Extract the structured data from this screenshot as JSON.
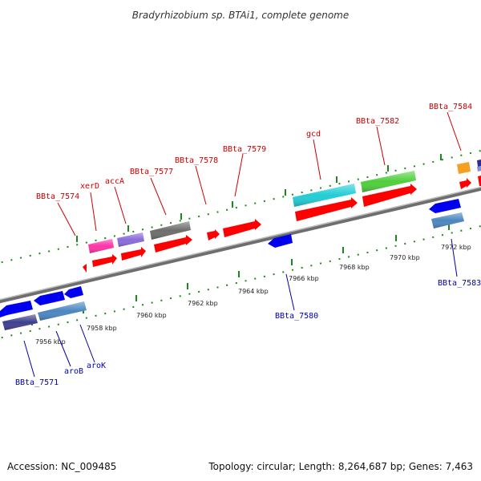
{
  "title": "Bradyrhizobium sp. BTAi1, complete genome",
  "footer": {
    "accession": "Accession: NC_009485",
    "summary": "Topology: circular; Length: 8,264,687 bp; Genes: 7,463"
  },
  "scale_labels": [
    "7956 kbp",
    "7958 kbp",
    "7960 kbp",
    "7962 kbp",
    "7964 kbp",
    "7966 kbp",
    "7968 kbp",
    "7970 kbp",
    "7972 kbp"
  ],
  "gene_labels_top": [
    "BBta_7574",
    "xerD",
    "accA",
    "BBta_7577",
    "BBta_7578",
    "BBta_7579",
    "gcd",
    "BBta_7582",
    "BBta_7584"
  ],
  "gene_labels_bottom": [
    "BBta_7571",
    "aroB",
    "aroK",
    "BBta_7580",
    "BBta_7583"
  ],
  "colors": {
    "backbone": "#8c8c8c",
    "tick": "#1a8a1a",
    "cds_forward": "#ff0000",
    "cds_reverse": "#0000ee",
    "label_top": "#cc0000",
    "label_bottom": "#0000aa"
  }
}
